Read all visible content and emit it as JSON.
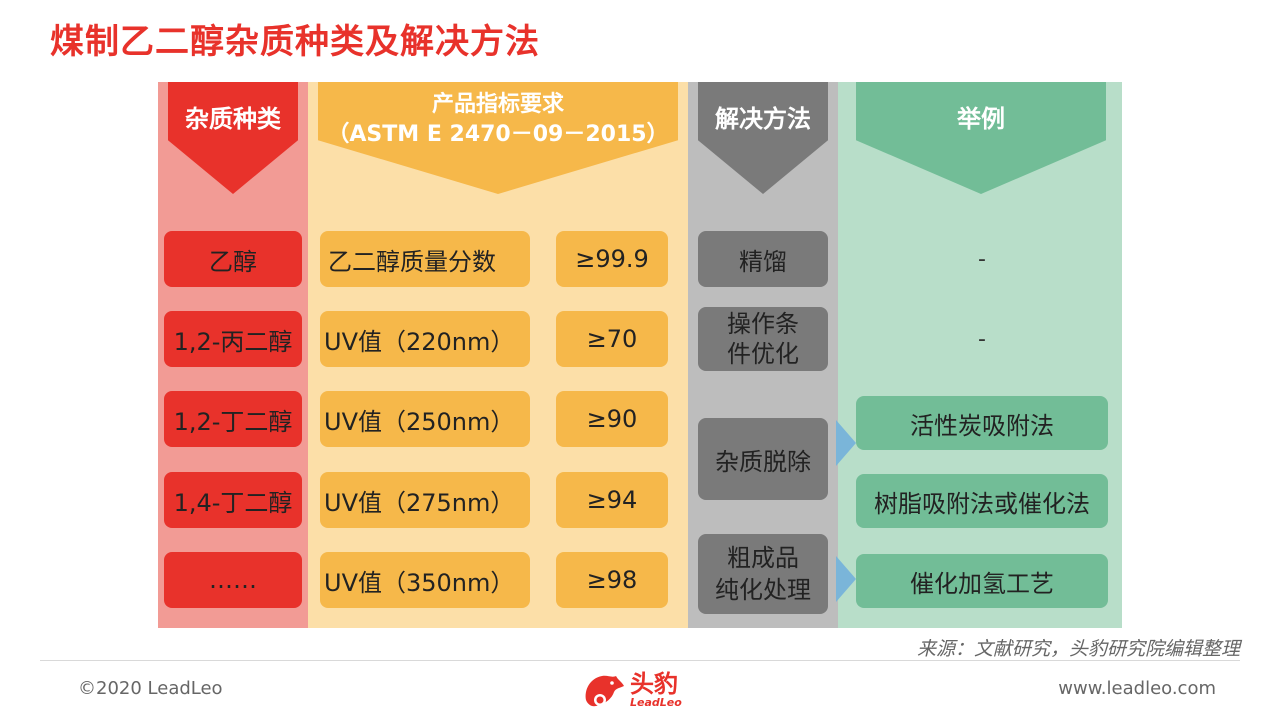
{
  "title": "煤制乙二醇杂质种类及解决方法",
  "headers": {
    "impurity": "杂质种类",
    "spec_line1": "产品指标要求",
    "spec_line2": "（ASTM E 2470－09－2015）",
    "method": "解决方法",
    "example": "举例"
  },
  "rows": [
    {
      "impurity": "乙醇",
      "indicator": "乙二醇质量分数",
      "value": "≥99.9",
      "example": "-"
    },
    {
      "impurity": "1,2-丙二醇",
      "indicator": "UV值（220nm）",
      "value": "≥70",
      "example": "-"
    },
    {
      "impurity": "1,2-丁二醇",
      "indicator": "UV值（250nm）",
      "value": "≥90"
    },
    {
      "impurity": "1,4-丁二醇",
      "indicator": "UV值（275nm）",
      "value": "≥94"
    },
    {
      "impurity": "……",
      "indicator": "UV值（350nm）",
      "value": "≥98"
    }
  ],
  "methods": {
    "m1": "精馏",
    "m2_line1": "操作条",
    "m2_line2": "件优化",
    "m3": "杂质脱除",
    "m4_line1": "粗成品",
    "m4_line2": "纯化处理"
  },
  "examples": {
    "e3": "活性炭吸附法",
    "e4": "树脂吸附法或催化法",
    "e5": "催化加氢工艺"
  },
  "footer": {
    "source": "来源：文献研究，头豹研究院编辑整理",
    "copyright": "©2020 LeadLeo",
    "website": "www.leadleo.com",
    "logo_cn": "头豹",
    "logo_en": "LeadLeo"
  },
  "colors": {
    "red": "#e8322b",
    "yellow": "#f6b84a",
    "gray": "#7a7a7a",
    "green": "#72bd97"
  }
}
